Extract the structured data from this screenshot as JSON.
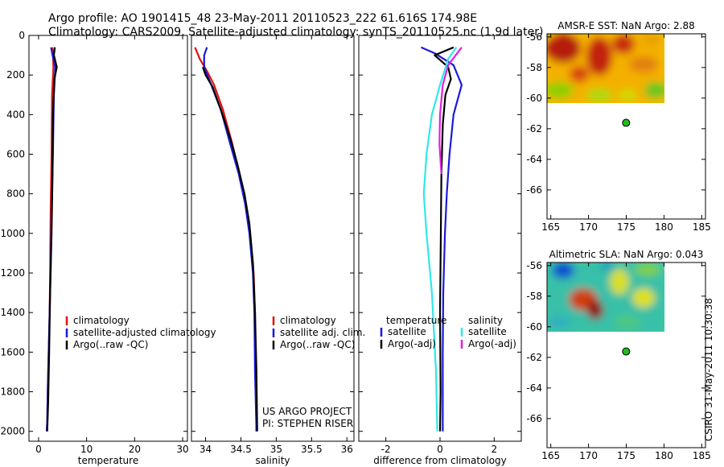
{
  "title_line1": "Argo profile: AO 1901415_48 23-May-2011 20110523_222 61.616S 174.98E",
  "title_line2": "Climatology: CARS2009. Satellite-adjusted climatology: synTS_20110525.nc (1.9d later)",
  "side_stamp": "CSIRO 31-May-2011 10:30:38",
  "colors": {
    "climatology": "#e01010",
    "satellite": "#1a1ad8",
    "argo": "#000000",
    "sat_cyan": "#30e8e8",
    "argo_magenta": "#e020e0",
    "argo_marker": "#22bb22"
  },
  "chart_data": [
    {
      "id": "temperature",
      "type": "line",
      "xlabel": "temperature",
      "xlim": [
        -2,
        31
      ],
      "xticks": [
        0,
        10,
        20,
        30
      ],
      "ylim": [
        0,
        2050
      ],
      "yticks": [
        0,
        200,
        400,
        600,
        800,
        1000,
        1200,
        1400,
        1600,
        1800,
        2000
      ],
      "legend_items": [
        "climatology",
        "satellite-adjusted climatology",
        "Argo(..raw -QC)"
      ],
      "series": [
        {
          "name": "climatology",
          "color_key": "climatology",
          "x": [
            2.9,
            3.0,
            3.1,
            2.8,
            2.7,
            2.5,
            2.4,
            2.3,
            2.1,
            1.9,
            1.8,
            1.7
          ],
          "y": [
            60,
            100,
            160,
            300,
            600,
            900,
            1200,
            1400,
            1600,
            1800,
            1950,
            2000
          ]
        },
        {
          "name": "satellite-adjusted climatology",
          "color_key": "satellite",
          "x": [
            2.6,
            2.9,
            3.5,
            3.2,
            3.0,
            2.7,
            2.5,
            2.3,
            2.1,
            1.9,
            1.8,
            1.7
          ],
          "y": [
            60,
            100,
            160,
            300,
            600,
            900,
            1200,
            1400,
            1600,
            1800,
            1950,
            2000
          ]
        },
        {
          "name": "Argo(..raw -QC)",
          "color_key": "argo",
          "x": [
            3.4,
            3.2,
            3.8,
            3.3,
            3.0,
            2.9,
            2.7,
            2.4,
            2.2,
            2.0,
            1.8
          ],
          "y": [
            60,
            100,
            160,
            220,
            400,
            700,
            1000,
            1300,
            1600,
            1850,
            2000
          ]
        }
      ]
    },
    {
      "id": "salinity",
      "type": "line",
      "xlabel": "salinity",
      "xlim": [
        33.8,
        36.1
      ],
      "xticks": [
        34,
        34.5,
        35,
        35.5,
        36
      ],
      "xtick_labels": [
        "34",
        "34.5",
        "35",
        "35.5",
        "36"
      ],
      "ylim": [
        0,
        2050
      ],
      "legend_items": [
        "climatology",
        "satellite adj. clim.",
        "Argo(..raw -QC)"
      ],
      "credit": [
        "US ARGO PROJECT",
        "PI: STEPHEN RISER"
      ],
      "series": [
        {
          "name": "climatology",
          "color_key": "climatology",
          "x": [
            33.85,
            33.92,
            34.02,
            34.12,
            34.25,
            34.38,
            34.48,
            34.57,
            34.63,
            34.68,
            34.7,
            34.71,
            34.72
          ],
          "y": [
            60,
            120,
            180,
            250,
            380,
            550,
            700,
            850,
            1000,
            1200,
            1400,
            1700,
            2000
          ]
        },
        {
          "name": "satellite adj. clim.",
          "color_key": "satellite",
          "x": [
            34.02,
            33.98,
            33.98,
            34.08,
            34.22,
            34.35,
            34.47,
            34.56,
            34.62,
            34.67,
            34.69,
            34.7,
            34.72
          ],
          "y": [
            60,
            100,
            160,
            250,
            380,
            550,
            700,
            850,
            1000,
            1200,
            1400,
            1700,
            2000
          ]
        },
        {
          "name": "Argo(..raw -QC)",
          "color_key": "argo",
          "x": [
            33.96,
            34.0,
            34.1,
            34.22,
            34.35,
            34.45,
            34.55,
            34.62,
            34.67,
            34.7,
            34.72,
            34.73
          ],
          "y": [
            160,
            200,
            260,
            380,
            520,
            650,
            800,
            950,
            1150,
            1400,
            1700,
            2000
          ]
        }
      ]
    },
    {
      "id": "difference",
      "type": "line",
      "xlabel": "difference from climatology",
      "xlim": [
        -3,
        3
      ],
      "xticks": [
        -2,
        0,
        2
      ],
      "ylim": [
        0,
        2050
      ],
      "legend_headers": [
        "temperature",
        "salinity"
      ],
      "legend_items": [
        "satellite",
        "Argo(-adj)",
        "satellite",
        "Argo(-adj)"
      ],
      "series": [
        {
          "name": "temperature satellite",
          "color_key": "satellite",
          "x": [
            -0.7,
            -0.2,
            0.5,
            0.8,
            0.5,
            0.35,
            0.25,
            0.18,
            0.12,
            0.1,
            0.1
          ],
          "y": [
            60,
            90,
            150,
            250,
            400,
            600,
            800,
            1000,
            1300,
            1600,
            2000
          ]
        },
        {
          "name": "temperature Argo(-adj)",
          "color_key": "argo",
          "x": [
            0.5,
            -0.2,
            0.3,
            0.4,
            0.2,
            0.1,
            0.05,
            0.03,
            0.0,
            0.02,
            0.0
          ],
          "y": [
            60,
            100,
            160,
            220,
            300,
            450,
            700,
            1000,
            1400,
            1800,
            2000
          ]
        },
        {
          "name": "salinity satellite",
          "color_key": "sat_cyan",
          "x": [
            0.6,
            0.3,
            0.0,
            -0.3,
            -0.5,
            -0.6,
            -0.5,
            -0.3,
            -0.15,
            -0.1
          ],
          "y": [
            60,
            120,
            250,
            400,
            600,
            800,
            1000,
            1300,
            1700,
            2000
          ]
        },
        {
          "name": "salinity Argo(-adj)",
          "color_key": "argo_magenta",
          "x": [
            0.8,
            0.3,
            0.1,
            0.0,
            -0.02,
            0.05
          ],
          "y": [
            60,
            150,
            250,
            400,
            550,
            700
          ]
        }
      ]
    },
    {
      "id": "amsr_sst",
      "type": "heatmap",
      "title": "AMSR-E SST: NaN Argo: 2.88",
      "xlim": [
        164.5,
        185.5
      ],
      "xticks": [
        165,
        170,
        175,
        180,
        185
      ],
      "ylim": [
        -67.9,
        -55.8
      ],
      "yticks": [
        -56,
        -58,
        -60,
        -62,
        -64,
        -66
      ],
      "field_lon": [
        165,
        180
      ],
      "field_lat": [
        -60,
        -56
      ],
      "argo_location": {
        "lon": 174.98,
        "lat": -61.616
      }
    },
    {
      "id": "altimetric_sla",
      "type": "heatmap",
      "title": "Altimetric SLA: NaN Argo: 0.043",
      "xlim": [
        164.5,
        185.5
      ],
      "xticks": [
        165,
        170,
        175,
        180,
        185
      ],
      "ylim": [
        -67.9,
        -55.8
      ],
      "yticks": [
        -56,
        -58,
        -60,
        -62,
        -64,
        -66
      ],
      "field_lon": [
        165,
        180
      ],
      "field_lat": [
        -60,
        -56
      ],
      "argo_location": {
        "lon": 174.98,
        "lat": -61.616
      }
    }
  ]
}
